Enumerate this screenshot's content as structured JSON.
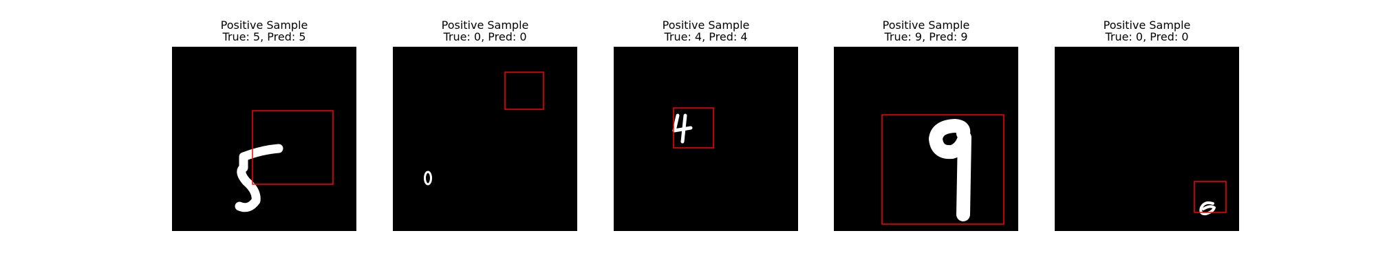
{
  "panels": [
    {
      "heading": "Positive Sample",
      "subtitle": "True: 5, Pred: 5",
      "digit": "5",
      "box_color": "#ff0000"
    },
    {
      "heading": "Positive Sample",
      "subtitle": "True: 0, Pred: 0",
      "digit": "0",
      "box_color": "#ff0000"
    },
    {
      "heading": "Positive Sample",
      "subtitle": "True: 4, Pred: 4",
      "digit": "4",
      "box_color": "#ff0000"
    },
    {
      "heading": "Positive Sample",
      "subtitle": "True: 9, Pred: 9",
      "digit": "9",
      "box_color": "#ff0000"
    },
    {
      "heading": "Positive Sample",
      "subtitle": "True: 0, Pred: 0",
      "digit": "0",
      "box_color": "#ff0000"
    }
  ]
}
